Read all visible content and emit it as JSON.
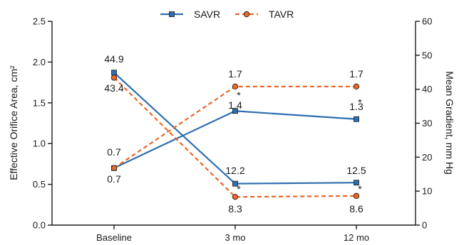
{
  "chart_data": {
    "type": "line",
    "categories": [
      "Baseline",
      "3 mo",
      "12 mo"
    ],
    "left_axis": {
      "label": "Effective Orifice Area, cm²",
      "ylim": [
        0,
        2.5
      ],
      "ticks": [
        "0.0",
        "0.5",
        "1.0",
        "1.5",
        "2.0",
        "2.5"
      ]
    },
    "right_axis": {
      "label": "Mean Gradient, mm Hg",
      "ylim": [
        0,
        60
      ],
      "ticks": [
        "0",
        "10",
        "20",
        "30",
        "40",
        "50",
        "60"
      ]
    },
    "legend": {
      "position": "top-center"
    },
    "series": [
      {
        "name": "SAVR",
        "color": "#2f6fb0",
        "dash": "solid",
        "marker": "square",
        "eoa": {
          "values": [
            0.7,
            1.4,
            1.3
          ],
          "labels": [
            "0.7",
            "1.4",
            "1.3"
          ]
        },
        "gradient": {
          "values": [
            44.9,
            12.2,
            12.5
          ],
          "labels": [
            "44.9",
            "12.2",
            "12.5"
          ]
        }
      },
      {
        "name": "TAVR",
        "color": "#e8672a",
        "dash": "dashed",
        "marker": "circle",
        "eoa": {
          "values": [
            0.7,
            1.7,
            1.7
          ],
          "labels": [
            "0.7",
            "1.7",
            "1.7"
          ]
        },
        "gradient": {
          "values": [
            43.4,
            8.3,
            8.6
          ],
          "labels": [
            "43.4",
            "8.3",
            "8.6"
          ]
        }
      }
    ],
    "significance_marker": "*"
  }
}
